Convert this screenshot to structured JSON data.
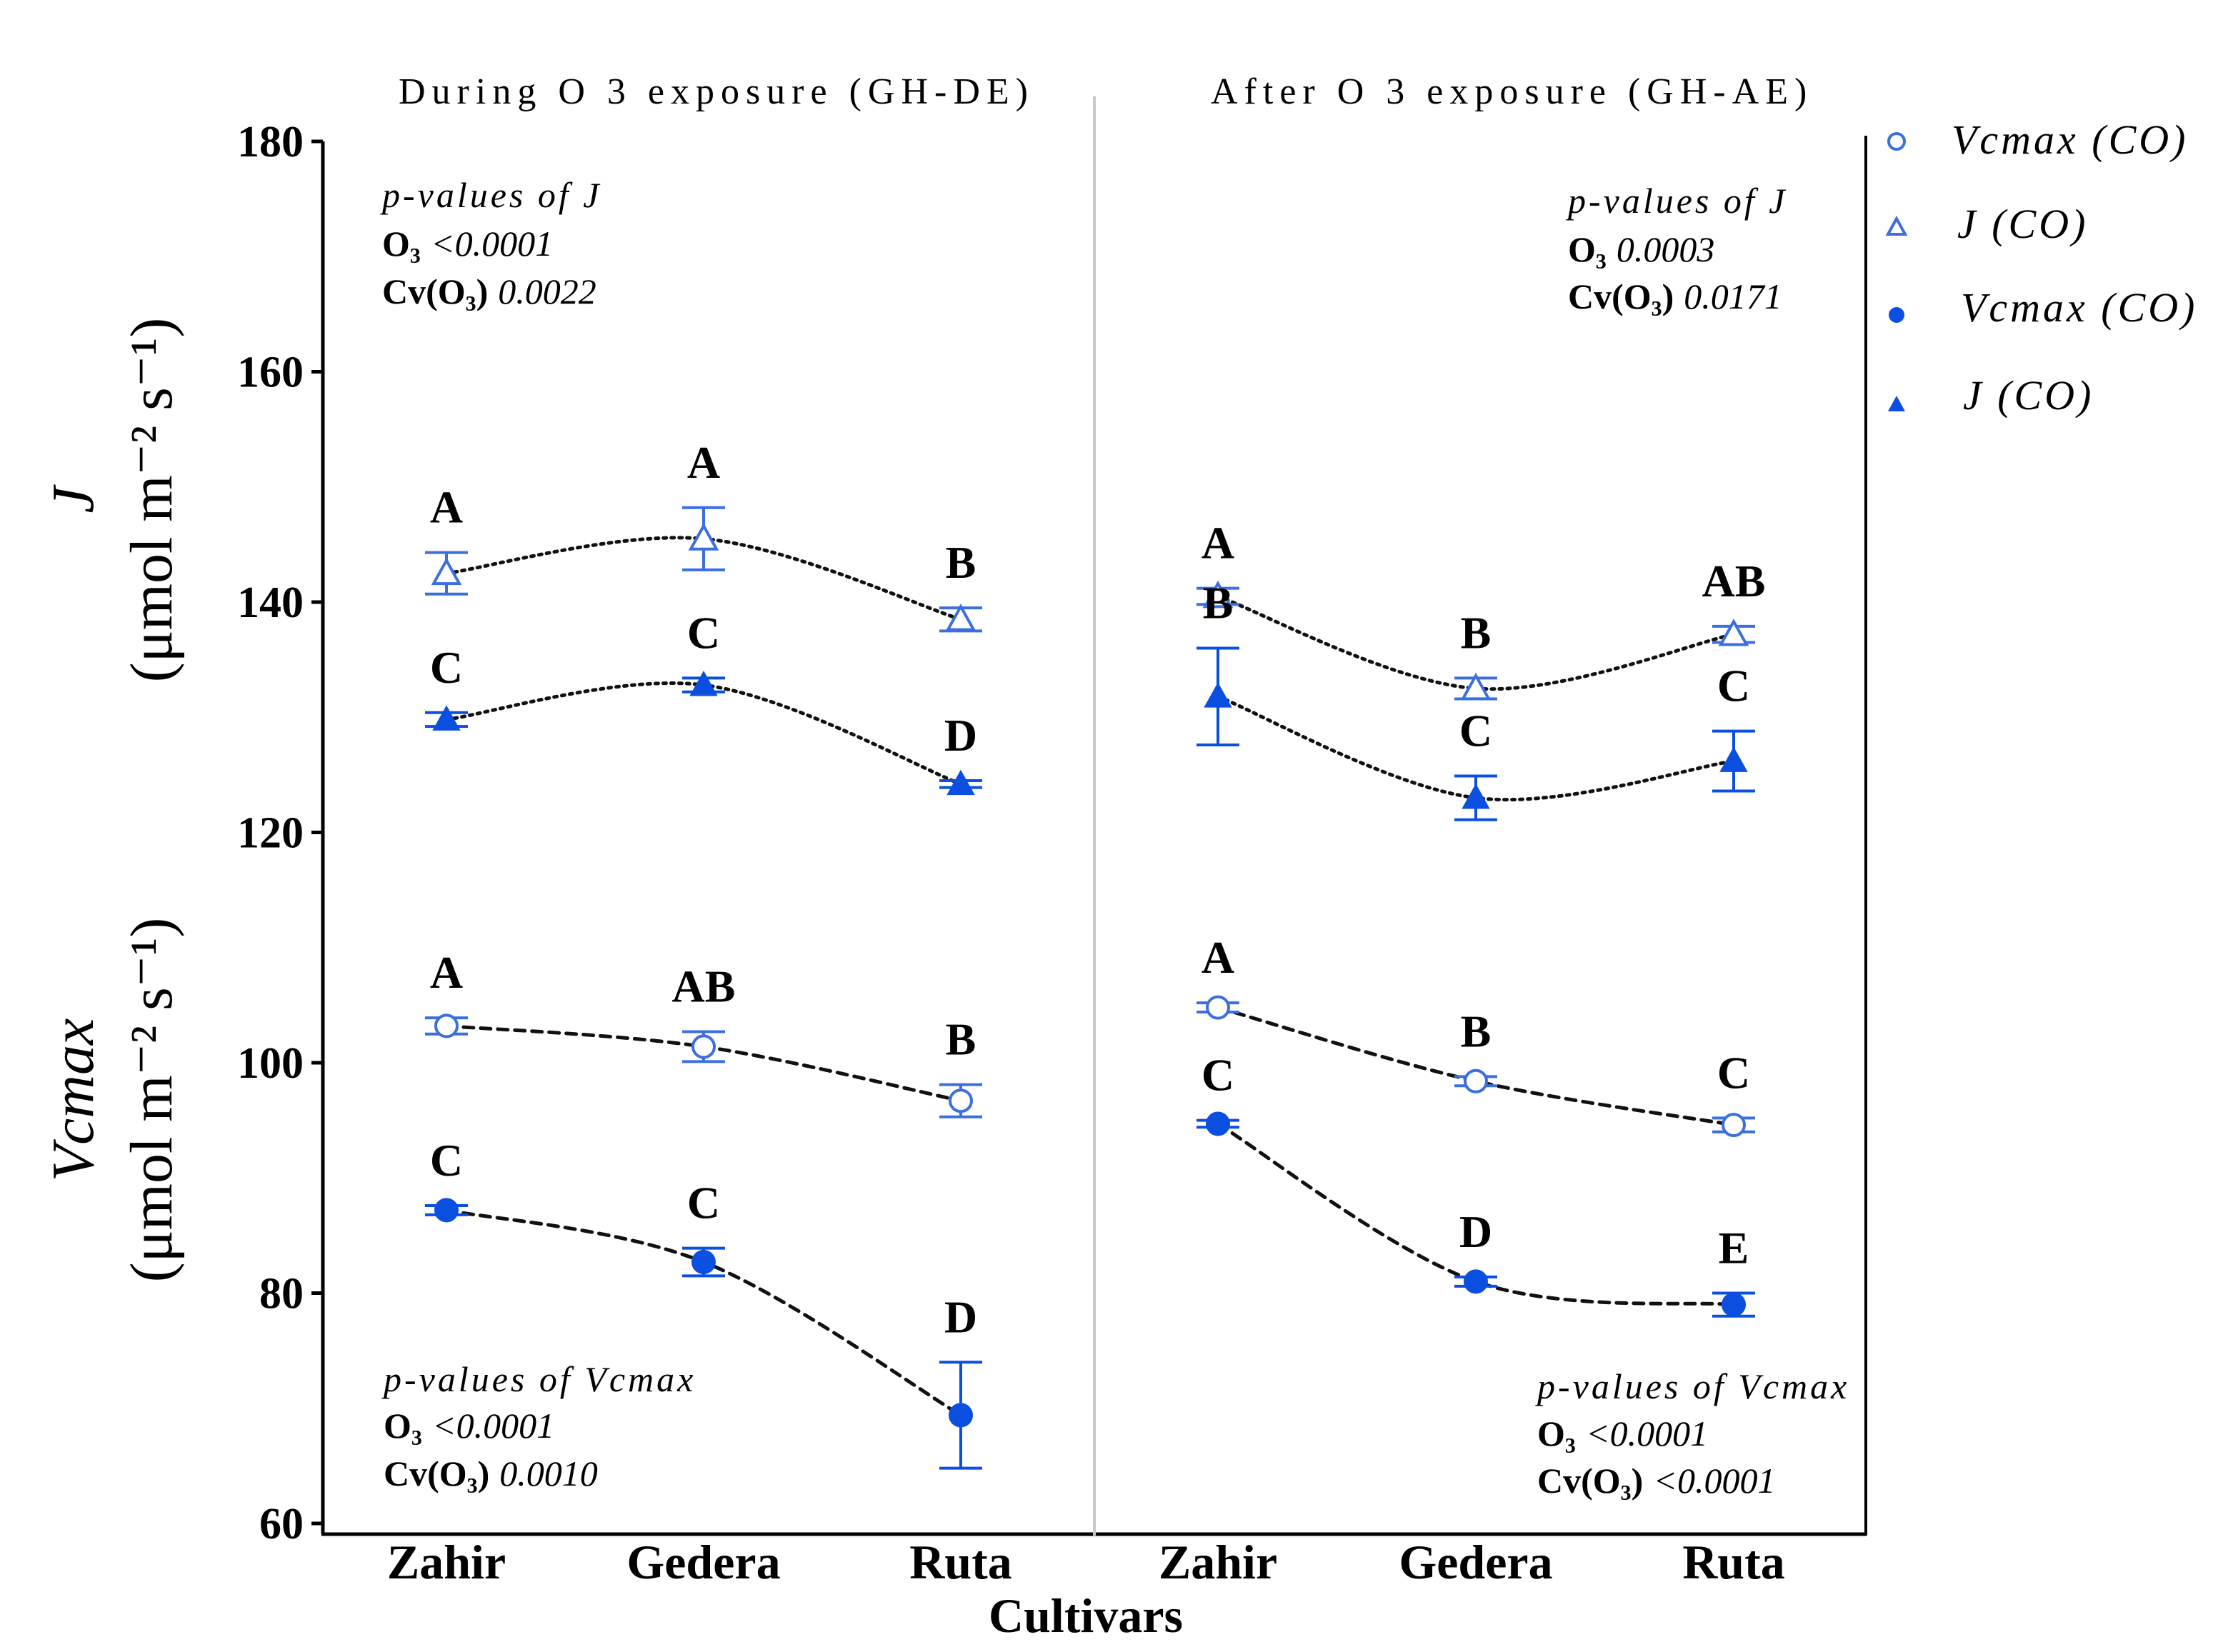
{
  "colors": {
    "co_series": "#3b6fe0",
    "ozone_series": "#0a4fe0",
    "axis": "#000000",
    "divider": "#c8c8c8",
    "fit_line": "#111111"
  },
  "panels": [
    {
      "title": "During O 3 exposure (GH-DE)"
    },
    {
      "title": "After O 3 exposure (GH-AE)"
    }
  ],
  "axes": {
    "xlabel": "Cultivars",
    "ylabel_top_symbol": "J",
    "ylabel_bottom_symbol": "Vcmax",
    "ylabel_unit": "(μmol m⁻² s⁻¹)",
    "yticks": [
      "180",
      "160",
      "140",
      "120",
      "100",
      "80",
      "60"
    ]
  },
  "legend": {
    "items": [
      {
        "label": "Vcmax (CO)",
        "marker": "open-circle"
      },
      {
        "label": "J (CO)",
        "marker": "open-triangle"
      },
      {
        "label": "Vcmax (CO)",
        "marker": "filled-circle"
      },
      {
        "label": "J (CO)",
        "marker": "filled-triangle"
      }
    ]
  },
  "pvalues": {
    "during_J": {
      "head": "p-values of J",
      "o3_label": "O₃",
      "o3_value": "<0.0001",
      "cv_label": "Cv(O₃)",
      "cv_value": "0.0022"
    },
    "after_J": {
      "head": "p-values of J",
      "o3_label": "O₃",
      "o3_value": "0.0003",
      "cv_label": "Cv(O₃)",
      "cv_value": "0.0171"
    },
    "during_V": {
      "head": "p-values of Vcmax",
      "o3_label": "O₃",
      "o3_value": "<0.0001",
      "cv_label": "Cv(O₃)",
      "cv_value": "0.0010"
    },
    "after_V": {
      "head": "p-values of Vcmax",
      "o3_label": "O₃",
      "o3_value": "<0.0001",
      "cv_label": "Cv(O₃)",
      "cv_value": "<0.0001"
    }
  },
  "chart_data": {
    "type": "scatter",
    "ylim": [
      60,
      180
    ],
    "yticks": [
      60,
      80,
      100,
      120,
      140,
      160,
      180
    ],
    "categories": [
      "Zahir",
      "Gedera",
      "Ruta"
    ],
    "panels": [
      {
        "title": "During O 3 exposure (GH-DE)",
        "series": [
          {
            "name": "J (CO)",
            "marker": "open-triangle",
            "fit": "dotted",
            "values": [
              142.5,
              145.5,
              138.5
            ],
            "errors": [
              1.8,
              2.7,
              1.0
            ],
            "letters": [
              "A",
              "A",
              "B"
            ]
          },
          {
            "name": "J (CO)",
            "marker": "filled-triangle",
            "fit": "dotted",
            "values": [
              129.8,
              132.8,
              124.2
            ],
            "errors": [
              0.6,
              0.6,
              0.3
            ],
            "letters": [
              "C",
              "C",
              "D"
            ]
          },
          {
            "name": "Vcmax (CO)",
            "marker": "open-circle",
            "fit": "dashed",
            "values": [
              103.2,
              101.4,
              96.7
            ],
            "errors": [
              0.7,
              1.3,
              1.4
            ],
            "letters": [
              "A",
              "AB",
              "B"
            ]
          },
          {
            "name": "Vcmax (CO)",
            "marker": "filled-circle",
            "fit": "dashed",
            "values": [
              87.2,
              82.7,
              69.4
            ],
            "errors": [
              0.4,
              1.2,
              4.6
            ],
            "letters": [
              "C",
              "C",
              "D"
            ]
          }
        ]
      },
      {
        "title": "After O 3 exposure (GH-AE)",
        "series": [
          {
            "name": "J (CO)",
            "marker": "open-triangle",
            "fit": "dotted",
            "values": [
              140.5,
              132.5,
              137.2
            ],
            "errors": [
              0.7,
              0.9,
              0.7
            ],
            "letters": [
              "A",
              "B",
              "AB"
            ]
          },
          {
            "name": "J (CO)",
            "marker": "filled-triangle",
            "fit": "dotted",
            "values": [
              131.8,
              123.0,
              126.2
            ],
            "errors": [
              4.2,
              1.9,
              2.6
            ],
            "letters": [
              "B",
              "C",
              "C"
            ]
          },
          {
            "name": "Vcmax (CO)",
            "marker": "open-circle",
            "fit": "dashed",
            "values": [
              104.8,
              98.4,
              94.6
            ],
            "errors": [
              0.4,
              0.4,
              0.6
            ],
            "letters": [
              "A",
              "B",
              "C"
            ]
          },
          {
            "name": "Vcmax (CO)",
            "marker": "filled-circle",
            "fit": "dashed",
            "values": [
              94.7,
              81.0,
              79.0
            ],
            "errors": [
              0.3,
              0.4,
              1.0
            ],
            "letters": [
              "C",
              "D",
              "E"
            ]
          }
        ]
      }
    ]
  }
}
